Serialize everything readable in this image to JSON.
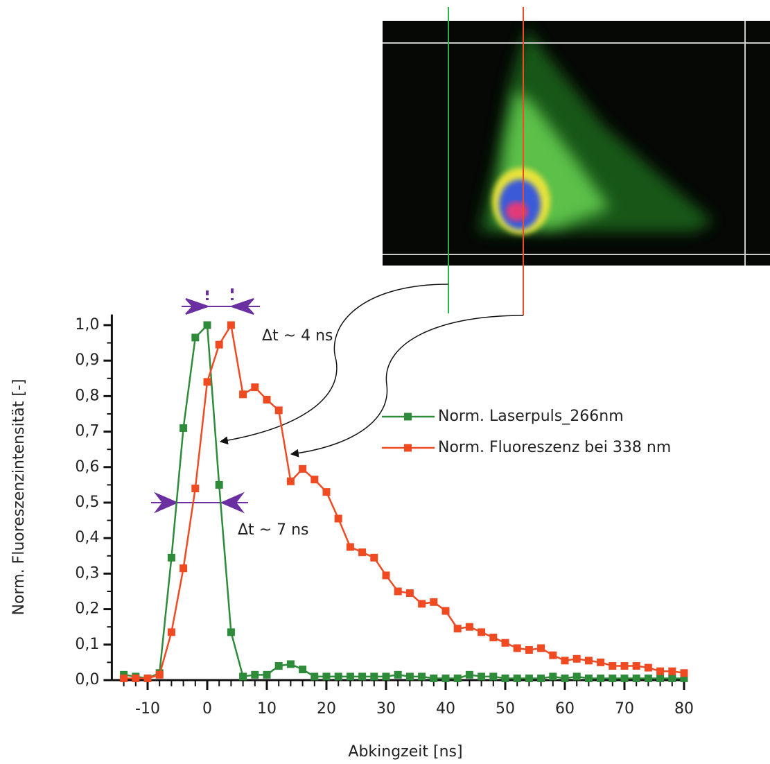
{
  "chart_data": {
    "type": "line",
    "xlabel": "Abkingzeit [ns]",
    "ylabel": "Norm. Fluoreszenzintensität [-]",
    "annotations": [
      "Δt ~ 4 ns",
      "Δt ~ 7 ns"
    ],
    "x": [
      -14,
      -12,
      -10,
      -8,
      -6,
      -4,
      -2,
      0,
      2,
      4,
      6,
      8,
      10,
      12,
      14,
      16,
      18,
      20,
      22,
      24,
      26,
      28,
      30,
      32,
      34,
      36,
      38,
      40,
      42,
      44,
      46,
      48,
      50,
      52,
      54,
      56,
      58,
      60,
      62,
      64,
      66,
      68,
      70,
      72,
      74,
      76,
      78,
      80
    ],
    "series": [
      {
        "name": "Norm. Laserpuls_266nm",
        "color": "#2e8b3a",
        "values": [
          0.015,
          0.01,
          0.005,
          0.02,
          0.345,
          0.71,
          0.965,
          1.0,
          0.55,
          0.135,
          0.01,
          0.015,
          0.015,
          0.04,
          0.045,
          0.03,
          0.01,
          0.01,
          0.01,
          0.01,
          0.01,
          0.01,
          0.01,
          0.015,
          0.01,
          0.01,
          0.005,
          0.005,
          0.005,
          0.015,
          0.01,
          0.01,
          0.005,
          0.005,
          0.005,
          0.005,
          0.01,
          0.005,
          0.01,
          0.005,
          0.005,
          0.005,
          0.005,
          0.005,
          0.005,
          0.005,
          0.005,
          0.005
        ]
      },
      {
        "name": "Norm. Fluoreszenz bei 338 nm",
        "color": "#f04a23",
        "values": [
          0.005,
          0.005,
          0.005,
          0.015,
          0.135,
          0.315,
          0.54,
          0.84,
          0.945,
          1.0,
          0.805,
          0.825,
          0.79,
          0.76,
          0.56,
          0.595,
          0.565,
          0.53,
          0.455,
          0.375,
          0.36,
          0.345,
          0.295,
          0.25,
          0.245,
          0.215,
          0.22,
          0.195,
          0.145,
          0.15,
          0.135,
          0.12,
          0.105,
          0.09,
          0.085,
          0.09,
          0.07,
          0.055,
          0.06,
          0.055,
          0.05,
          0.04,
          0.04,
          0.04,
          0.035,
          0.025,
          0.025,
          0.02
        ]
      }
    ],
    "xlim": [
      -16,
      80
    ],
    "xticks": [
      -10,
      0,
      10,
      20,
      30,
      40,
      50,
      60,
      70,
      80
    ],
    "ylim": [
      0,
      1.03
    ],
    "yticks": [
      {
        "value": 0,
        "label": "0,0"
      },
      {
        "value": 0.1,
        "label": "0,1"
      },
      {
        "value": 0.2,
        "label": "0,2"
      },
      {
        "value": 0.3,
        "label": "0,3"
      },
      {
        "value": 0.4,
        "label": "0,4"
      },
      {
        "value": 0.5,
        "label": "0,5"
      },
      {
        "value": 0.6,
        "label": "0,6"
      },
      {
        "value": 0.7,
        "label": "0,7"
      },
      {
        "value": 0.8,
        "label": "0,8"
      },
      {
        "value": 0.9,
        "label": "0,9"
      },
      {
        "value": 1.0,
        "label": "1,0"
      }
    ],
    "grid": false,
    "legend": "right"
  }
}
